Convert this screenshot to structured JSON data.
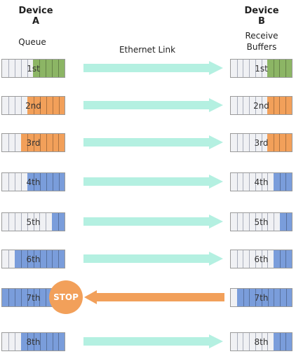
{
  "device_a": {
    "title_line1": "Device",
    "title_line2": "A",
    "subtitle": "Queue"
  },
  "device_b": {
    "title_line1": "Device",
    "title_line2": "B",
    "subtitle_line1": "Receive",
    "subtitle_line2": "Buffers"
  },
  "link_label": "Ethernet Link",
  "stop_label": "STOP",
  "colors": {
    "green": "#8cb565",
    "orange": "#f2a05a",
    "blue": "#7a9ddb",
    "arrow": "#b4f0e1",
    "arrow_stop": "#f2a05a",
    "empty": "#f0f1f4"
  },
  "rows": [
    {
      "label": "1st",
      "color": "green",
      "queue_slots_filled": 5,
      "buffer_slots_filled": 4,
      "link": "forward"
    },
    {
      "label": "2nd",
      "color": "orange",
      "queue_slots_filled": 6,
      "buffer_slots_filled": 4,
      "link": "forward"
    },
    {
      "label": "3rd",
      "color": "orange",
      "queue_slots_filled": 7,
      "buffer_slots_filled": 4,
      "link": "forward"
    },
    {
      "label": "4th",
      "color": "blue",
      "queue_slots_filled": 6,
      "buffer_slots_filled": 3,
      "link": "forward"
    },
    {
      "label": "5th",
      "color": "blue",
      "queue_slots_filled": 2,
      "buffer_slots_filled": 2,
      "link": "forward"
    },
    {
      "label": "6th",
      "color": "blue",
      "queue_slots_filled": 8,
      "buffer_slots_filled": 3,
      "link": "forward"
    },
    {
      "label": "7th",
      "color": "blue",
      "queue_slots_filled": 10,
      "buffer_slots_filled": 9,
      "link": "stop"
    },
    {
      "label": "8th",
      "color": "blue",
      "queue_slots_filled": 7,
      "buffer_slots_filled": 3,
      "link": "forward"
    }
  ]
}
